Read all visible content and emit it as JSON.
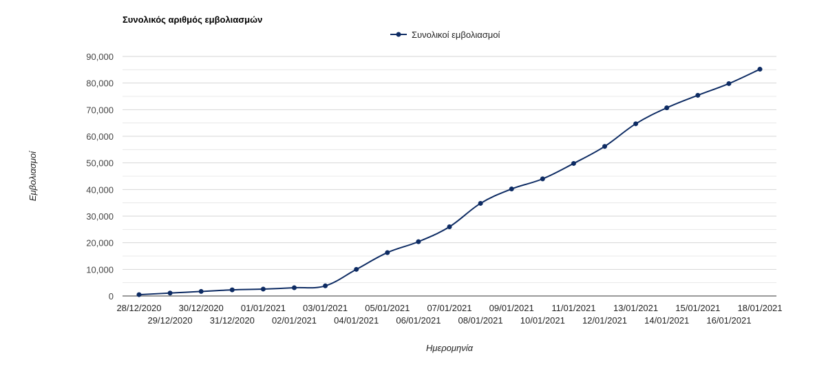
{
  "chart_data": {
    "type": "line",
    "title": "Συνολικός αριθμός εμβολιασμών",
    "xlabel": "Ημερομηνία",
    "ylabel": "Εμβολιασμοί",
    "legend_position": "top-center",
    "grid": true,
    "ylim": [
      0,
      90000
    ],
    "yticks": [
      "0",
      "10,000",
      "20,000",
      "30,000",
      "40,000",
      "50,000",
      "60,000",
      "70,000",
      "80,000",
      "90,000"
    ],
    "categories": [
      "28/12/2020",
      "29/12/2020",
      "30/12/2020",
      "31/12/2020",
      "01/01/2021",
      "02/01/2021",
      "03/01/2021",
      "04/01/2021",
      "05/01/2021",
      "06/01/2021",
      "07/01/2021",
      "08/01/2021",
      "09/01/2021",
      "10/01/2021",
      "11/01/2021",
      "12/01/2021",
      "13/01/2021",
      "14/01/2021",
      "15/01/2021",
      "16/01/2021",
      "18/01/2021"
    ],
    "series": [
      {
        "name": "Συνολικοί εμβολιασμοί",
        "color": "#0d2b63",
        "values": [
          500,
          1100,
          1700,
          2300,
          2600,
          3100,
          3800,
          10000,
          16300,
          20400,
          26000,
          34800,
          40200,
          44000,
          49800,
          56200,
          64700,
          70700,
          75400,
          79800,
          85200
        ]
      }
    ]
  }
}
